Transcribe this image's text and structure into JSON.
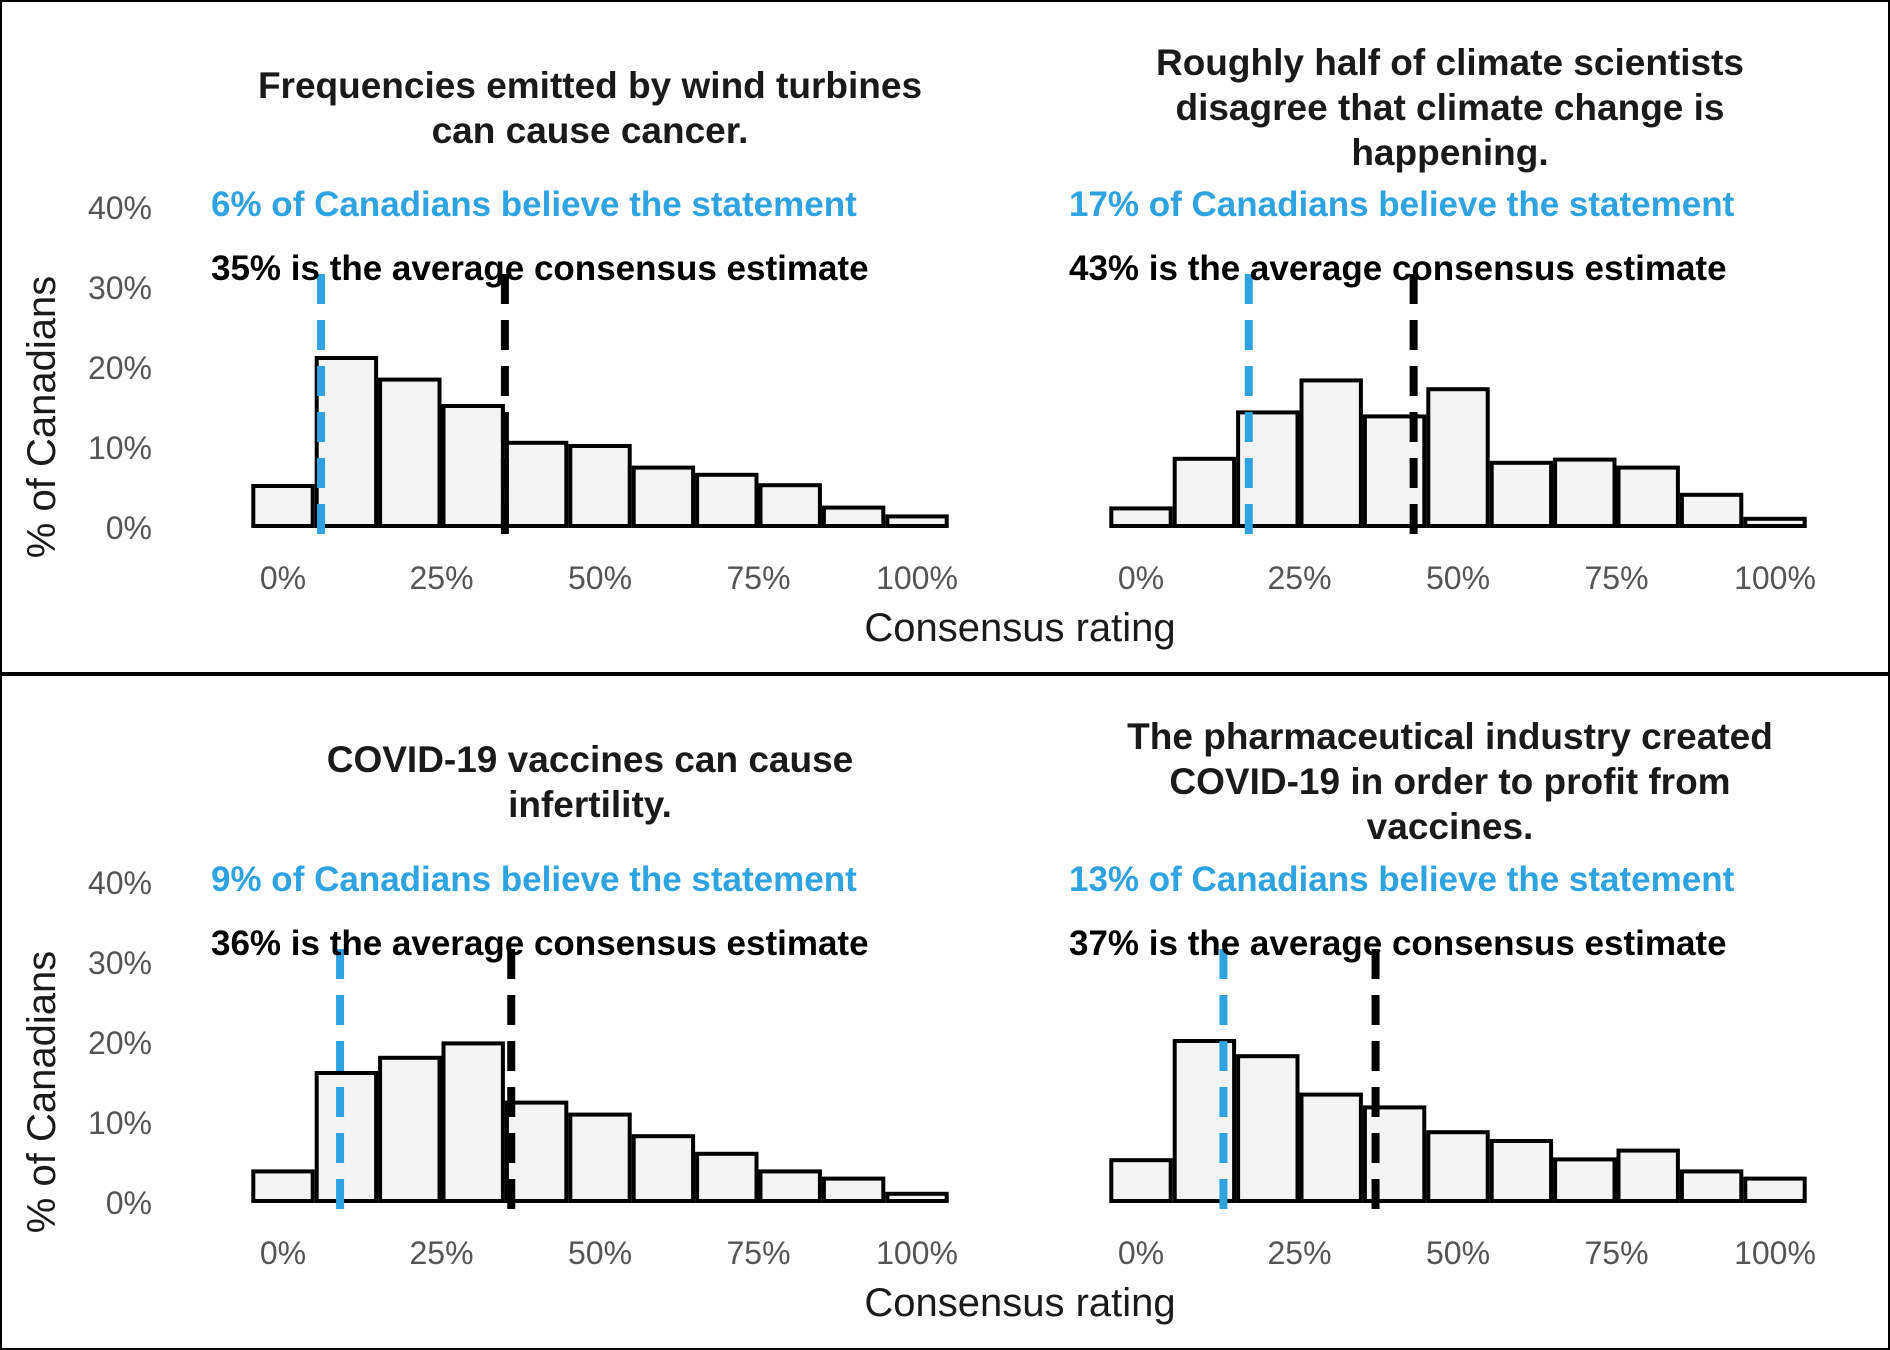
{
  "colors": {
    "believe": "#2ea3e0",
    "estimate": "#000000",
    "bar_fill": "#f4f4f4",
    "bar_stroke": "#000000",
    "tick_text": "#555555"
  },
  "rows": [
    {
      "ylabel": "% of Canadians",
      "xlabel": "Consensus rating"
    },
    {
      "ylabel": "% of Canadians",
      "xlabel": "Consensus rating"
    }
  ],
  "chart_data": [
    {
      "type": "bar",
      "title_lines": [
        "Frequencies emitted by wind turbines",
        "can cause cancer."
      ],
      "believe_text": "6% of Canadians believe the statement",
      "estimate_text": "35% is the average consensus estimate",
      "believe_value": 6,
      "estimate_value": 35,
      "categories": [
        0,
        10,
        20,
        30,
        40,
        50,
        60,
        70,
        80,
        90,
        100
      ],
      "values": [
        5,
        21,
        18.3,
        15,
        10.4,
        10,
        7.3,
        6.4,
        5.1,
        2.3,
        1.2
      ],
      "xticks": [
        "0%",
        "25%",
        "50%",
        "75%",
        "100%"
      ],
      "yticks": [
        "0%",
        "10%",
        "20%",
        "30%",
        "40%"
      ],
      "xlim": [
        -5,
        105
      ],
      "ylim": [
        0,
        40
      ],
      "xlabel": "Consensus rating",
      "ylabel": "% of Canadians",
      "grid": false
    },
    {
      "type": "bar",
      "title_lines": [
        "Roughly half of climate scientists",
        "disagree that climate change is",
        "happening."
      ],
      "believe_text": "17% of Canadians believe the statement",
      "estimate_text": "43% is the average consensus estimate",
      "believe_value": 17,
      "estimate_value": 43,
      "categories": [
        0,
        10,
        20,
        30,
        40,
        50,
        60,
        70,
        80,
        90,
        100
      ],
      "values": [
        2.2,
        8.4,
        14.2,
        18.2,
        13.7,
        17.1,
        7.9,
        8.3,
        7.3,
        3.9,
        0.9
      ],
      "xticks": [
        "0%",
        "25%",
        "50%",
        "75%",
        "100%"
      ],
      "yticks": [
        "0%",
        "10%",
        "20%",
        "30%",
        "40%"
      ],
      "xlim": [
        -5,
        105
      ],
      "ylim": [
        0,
        40
      ],
      "xlabel": "Consensus rating",
      "ylabel": "% of Canadians",
      "grid": false
    },
    {
      "type": "bar",
      "title_lines": [
        "COVID-19 vaccines can cause",
        "infertility."
      ],
      "believe_text": "9% of Canadians believe the statement",
      "estimate_text": "36% is the average consensus estimate",
      "believe_value": 9,
      "estimate_value": 36,
      "categories": [
        0,
        10,
        20,
        30,
        40,
        50,
        60,
        70,
        80,
        90,
        100
      ],
      "values": [
        3.7,
        16,
        17.9,
        19.7,
        12.3,
        10.8,
        8.1,
        5.9,
        3.7,
        2.8,
        0.9
      ],
      "xticks": [
        "0%",
        "25%",
        "50%",
        "75%",
        "100%"
      ],
      "yticks": [
        "0%",
        "10%",
        "20%",
        "30%",
        "40%"
      ],
      "xlim": [
        -5,
        105
      ],
      "ylim": [
        0,
        40
      ],
      "xlabel": "Consensus rating",
      "ylabel": "% of Canadians",
      "grid": false
    },
    {
      "type": "bar",
      "title_lines": [
        "The pharmaceutical industry created",
        "COVID-19 in order to profit from",
        "vaccines."
      ],
      "believe_text": "13% of Canadians believe the statement",
      "estimate_text": "37% is the average consensus estimate",
      "believe_value": 13,
      "estimate_value": 37,
      "categories": [
        0,
        10,
        20,
        30,
        40,
        50,
        60,
        70,
        80,
        90,
        100
      ],
      "values": [
        5.1,
        20,
        18.1,
        13.3,
        11.7,
        8.6,
        7.5,
        5.2,
        6.3,
        3.7,
        2.8
      ],
      "xticks": [
        "0%",
        "25%",
        "50%",
        "75%",
        "100%"
      ],
      "yticks": [
        "0%",
        "10%",
        "20%",
        "30%",
        "40%"
      ],
      "xlim": [
        -5,
        105
      ],
      "ylim": [
        0,
        40
      ],
      "xlabel": "Consensus rating",
      "ylabel": "% of Canadians",
      "grid": false
    }
  ]
}
